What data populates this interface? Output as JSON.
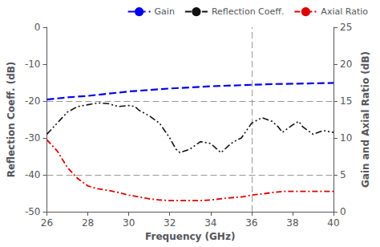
{
  "chart_data": {
    "type": "line",
    "xlabel": "Frequency (GHz)",
    "ylabel": "Reflection Coeff. (dB)",
    "y2label": "Gain and Axial Ratio (dB)",
    "xlim": [
      26,
      40
    ],
    "xticks": [
      26,
      28,
      30,
      32,
      34,
      36,
      38,
      40
    ],
    "ylim": [
      -50,
      0
    ],
    "yticks": [
      0,
      -10,
      -20,
      -30,
      -40,
      -50
    ],
    "y2lim": [
      0,
      25
    ],
    "y2ticks": [
      0,
      5,
      10,
      15,
      20,
      25
    ],
    "grid": false,
    "legend": "upper right",
    "series": [
      {
        "name": "Gain",
        "axis": "y2",
        "color": "#0000ee",
        "line_style": "dashed",
        "x": [
          26,
          27,
          28,
          29,
          30,
          31,
          32,
          33,
          34,
          35,
          36,
          37,
          38,
          39,
          40
        ],
        "values": [
          15.2,
          15.5,
          15.7,
          16.0,
          16.3,
          16.5,
          16.7,
          16.85,
          17.0,
          17.1,
          17.2,
          17.3,
          17.35,
          17.4,
          17.45
        ]
      },
      {
        "name": "Reflection Coeff.",
        "axis": "y",
        "color": "#111111",
        "line_style": "dashdotdot",
        "x": [
          26,
          26.5,
          27,
          27.5,
          28,
          28.5,
          29,
          29.5,
          30,
          30.3,
          30.5,
          31,
          31.5,
          32,
          32.3,
          32.5,
          33,
          33.5,
          34,
          34.3,
          34.5,
          35,
          35.3,
          35.5,
          36,
          36.5,
          37,
          37.3,
          37.5,
          38,
          38.3,
          38.5,
          39,
          39.5,
          40
        ],
        "values": [
          -29,
          -26,
          -23,
          -21.5,
          -21,
          -20.5,
          -20.7,
          -21.5,
          -21.2,
          -21.5,
          -22.5,
          -24,
          -26,
          -30,
          -33,
          -34,
          -33,
          -31,
          -31.5,
          -33,
          -34,
          -31.5,
          -30.5,
          -30,
          -26,
          -24.5,
          -25.5,
          -27,
          -28.5,
          -26.5,
          -25.5,
          -27,
          -29,
          -28,
          -28.5
        ]
      },
      {
        "name": "Axial Ratio",
        "axis": "y",
        "color": "#dd0000",
        "line_style": "dashdot",
        "x": [
          26,
          26.5,
          27,
          27.5,
          28,
          28.5,
          29,
          29.5,
          30,
          30.5,
          31,
          31.5,
          32,
          32.5,
          33,
          33.5,
          34,
          34.5,
          35,
          35.5,
          36,
          36.5,
          37,
          37.5,
          38,
          38.5,
          39,
          39.5,
          40
        ],
        "values": [
          -30.5,
          -33.5,
          -38,
          -41,
          -43,
          -43.8,
          -44.2,
          -44.8,
          -45.5,
          -46,
          -46.5,
          -46.8,
          -47,
          -47,
          -47,
          -47,
          -46.8,
          -46.5,
          -46.2,
          -46,
          -45.5,
          -45.2,
          -44.8,
          -44.5,
          -44.5,
          -44.5,
          -44.5,
          -44.5,
          -44.5
        ]
      }
    ],
    "reference_lines": {
      "y": [
        -20,
        -40
      ],
      "x": [
        36
      ],
      "color": "#999999"
    }
  }
}
